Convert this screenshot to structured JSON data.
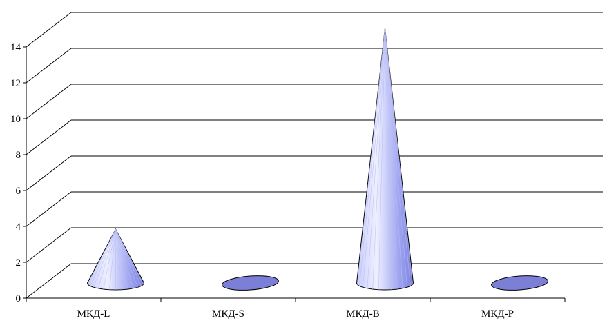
{
  "chart_data": {
    "type": "bar",
    "style": "3d-cone",
    "categories": [
      "МКД-L",
      "МКД-S",
      "МКД-B",
      "МКД-P"
    ],
    "values": [
      2,
      0,
      13.2,
      0
    ],
    "ylim": [
      0,
      14
    ],
    "yticks": [
      "0",
      "2",
      "4",
      "6",
      "8",
      "10",
      "12",
      "14"
    ],
    "title": "",
    "xlabel": "",
    "ylabel": "",
    "grid": true,
    "legend": "none",
    "colors": {
      "cone_light": "#d8dcff",
      "cone_mid": "#9aa0ee",
      "cone_dark": "#6a70c8",
      "flat_fill": "#7b80d6",
      "outline": "#000000"
    }
  }
}
